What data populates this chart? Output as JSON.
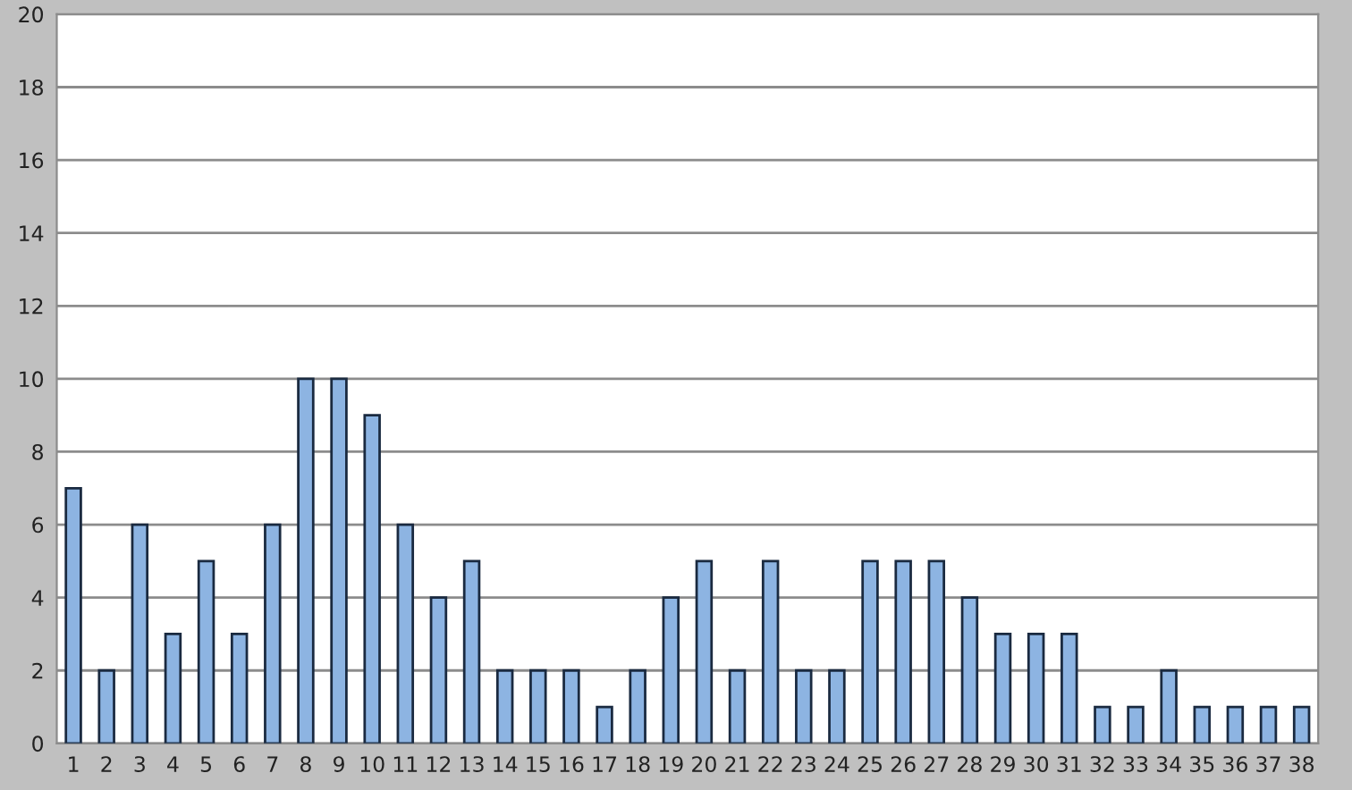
{
  "chart_data": {
    "type": "bar",
    "categories": [
      "1",
      "2",
      "3",
      "4",
      "5",
      "6",
      "7",
      "8",
      "9",
      "10",
      "11",
      "12",
      "13",
      "14",
      "15",
      "16",
      "17",
      "18",
      "19",
      "20",
      "21",
      "22",
      "23",
      "24",
      "25",
      "26",
      "27",
      "28",
      "29",
      "30",
      "31",
      "32",
      "33",
      "34",
      "35",
      "36",
      "37",
      "38"
    ],
    "values": [
      7,
      2,
      6,
      3,
      5,
      3,
      6,
      10,
      10,
      9,
      6,
      4,
      5,
      2,
      2,
      2,
      1,
      2,
      4,
      5,
      2,
      5,
      2,
      2,
      5,
      5,
      5,
      4,
      3,
      3,
      3,
      1,
      1,
      2,
      1,
      1,
      1,
      1
    ],
    "color": "#8db4e2",
    "ylim": [
      0,
      20
    ],
    "yticks": [
      0,
      2,
      4,
      6,
      8,
      10,
      12,
      14,
      16,
      18,
      20
    ],
    "grid": "y"
  }
}
